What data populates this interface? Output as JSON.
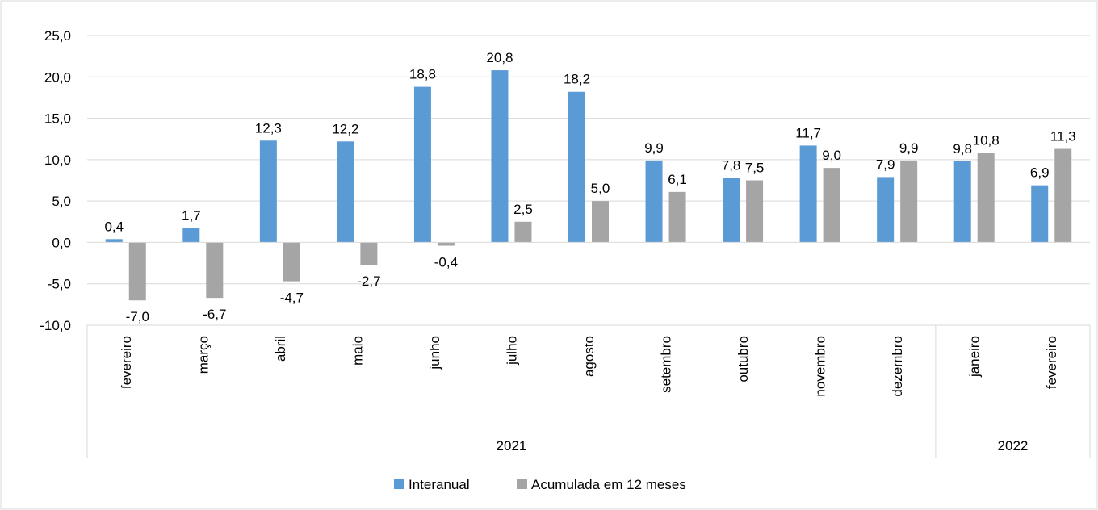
{
  "chart_data": {
    "type": "bar",
    "title": "",
    "xlabel": "",
    "ylabel": "",
    "ylim": [
      -10,
      25
    ],
    "ytick_step": 5,
    "grid": true,
    "legend_placement": "bottom",
    "decimal_separator": ",",
    "categories": [
      "fevereiro",
      "março",
      "abril",
      "maio",
      "junho",
      "julho",
      "agosto",
      "setembro",
      "outubro",
      "novembro",
      "dezembro",
      "janeiro",
      "fevereiro"
    ],
    "groups": [
      {
        "label": "2021",
        "count": 11
      },
      {
        "label": "2022",
        "count": 2
      }
    ],
    "series": [
      {
        "name": "Interanual",
        "color": "#5b9bd5",
        "values": [
          0.4,
          1.7,
          12.3,
          12.2,
          18.8,
          20.8,
          18.2,
          9.9,
          7.8,
          11.7,
          7.9,
          9.8,
          6.9
        ]
      },
      {
        "name": "Acumulada em 12 meses",
        "color": "#a5a5a5",
        "values": [
          -7.0,
          -6.7,
          -4.7,
          -2.7,
          -0.4,
          2.5,
          5.0,
          6.1,
          7.5,
          9.0,
          9.9,
          10.8,
          11.3
        ]
      }
    ]
  }
}
